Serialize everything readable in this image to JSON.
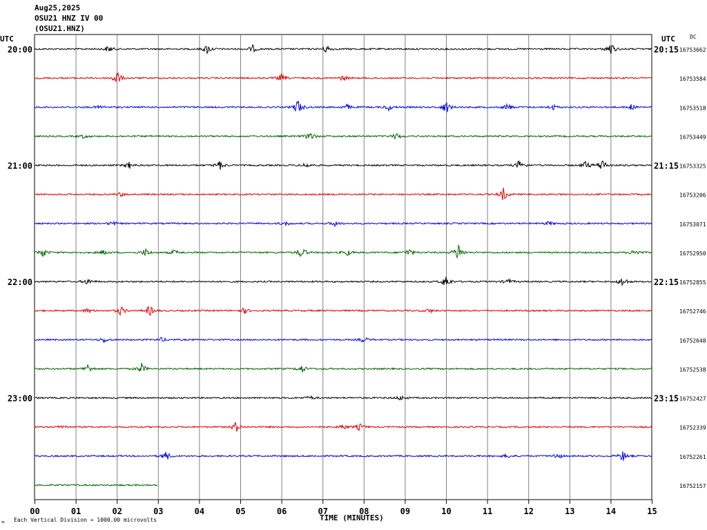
{
  "header": {
    "date": "Aug25,2025",
    "station": "OSU21 HNZ IV 00",
    "channel": "(OSU21.HNZ)"
  },
  "left_tz": "UTC",
  "right_tz": "UTC",
  "dc_label": "DC",
  "footer": {
    "corner_mark": "≈",
    "scale_note": "Each Vertical Division = 1000.00 microvolts"
  },
  "chart_data": {
    "type": "line",
    "xlabel": "TIME (MINUTES)",
    "ylabel": "",
    "title": "",
    "xlim": [
      0,
      15
    ],
    "x_ticks": [
      "00",
      "01",
      "02",
      "03",
      "04",
      "05",
      "06",
      "07",
      "08",
      "09",
      "10",
      "11",
      "12",
      "13",
      "14",
      "15"
    ],
    "grid": true,
    "row_minutes": 15,
    "left_time_labels": [
      "20:00",
      "21:00",
      "22:00",
      "23:00"
    ],
    "right_time_labels": [
      "20:15",
      "21:15",
      "22:15",
      "23:15"
    ],
    "trace_colors": [
      "#000000",
      "#e00000",
      "#0000e0",
      "#006400"
    ],
    "rows": [
      {
        "dc": "16753662",
        "end": 15,
        "events": [
          [
            1.8,
            5
          ],
          [
            4.2,
            7
          ],
          [
            5.3,
            5
          ],
          [
            7.1,
            6
          ],
          [
            14,
            10
          ]
        ]
      },
      {
        "dc": "16753584",
        "end": 15,
        "events": [
          [
            2.0,
            12
          ],
          [
            6.0,
            6
          ],
          [
            7.5,
            4
          ]
        ]
      },
      {
        "dc": "16753518",
        "end": 15,
        "events": [
          [
            1.6,
            3
          ],
          [
            6.4,
            12
          ],
          [
            7.6,
            4
          ],
          [
            8.6,
            5
          ],
          [
            10.0,
            10
          ],
          [
            11.5,
            6
          ],
          [
            12.6,
            4
          ],
          [
            14.5,
            4
          ]
        ]
      },
      {
        "dc": "16753449",
        "end": 15,
        "events": [
          [
            1.2,
            3
          ],
          [
            6.7,
            7
          ],
          [
            8.8,
            5
          ]
        ]
      },
      {
        "dc": "16753325",
        "end": 15,
        "events": [
          [
            2.3,
            5
          ],
          [
            4.5,
            7
          ],
          [
            6.6,
            4
          ],
          [
            11.8,
            9
          ],
          [
            13.4,
            6
          ],
          [
            13.8,
            10
          ]
        ]
      },
      {
        "dc": "16753206",
        "end": 15,
        "events": [
          [
            11.4,
            10
          ],
          [
            2.1,
            3
          ]
        ]
      },
      {
        "dc": "16753071",
        "end": 15,
        "events": [
          [
            1.9,
            3
          ],
          [
            6.1,
            3
          ],
          [
            7.3,
            4
          ],
          [
            12.5,
            3
          ]
        ]
      },
      {
        "dc": "16752950",
        "end": 15,
        "events": [
          [
            0.2,
            7
          ],
          [
            1.7,
            4
          ],
          [
            2.7,
            6
          ],
          [
            3.4,
            4
          ],
          [
            6.5,
            9
          ],
          [
            7.6,
            5
          ],
          [
            9.1,
            6
          ],
          [
            10.3,
            14
          ],
          [
            14.6,
            6
          ]
        ]
      },
      {
        "dc": "16752855",
        "end": 15,
        "events": [
          [
            1.3,
            5
          ],
          [
            10.0,
            10
          ],
          [
            11.5,
            4
          ],
          [
            14.3,
            8
          ]
        ]
      },
      {
        "dc": "16752746",
        "end": 15,
        "events": [
          [
            1.3,
            4
          ],
          [
            2.1,
            7
          ],
          [
            2.8,
            8
          ],
          [
            5.1,
            4
          ],
          [
            9.6,
            3
          ]
        ]
      },
      {
        "dc": "16752648",
        "end": 15,
        "events": [
          [
            1.7,
            4
          ],
          [
            3.1,
            3
          ],
          [
            8.0,
            4
          ]
        ]
      },
      {
        "dc": "16752538",
        "end": 15,
        "events": [
          [
            1.3,
            7
          ],
          [
            2.6,
            8
          ],
          [
            6.5,
            6
          ]
        ]
      },
      {
        "dc": "16752427",
        "end": 15,
        "events": [
          [
            6.7,
            3
          ],
          [
            8.9,
            4
          ]
        ]
      },
      {
        "dc": "16752339",
        "end": 15,
        "events": [
          [
            0.7,
            3
          ],
          [
            4.9,
            8
          ],
          [
            7.5,
            4
          ],
          [
            7.9,
            5
          ]
        ]
      },
      {
        "dc": "16752261",
        "end": 15,
        "events": [
          [
            3.2,
            7
          ],
          [
            11.5,
            3
          ],
          [
            12.7,
            5
          ],
          [
            14.3,
            8
          ]
        ]
      },
      {
        "dc": "16752157",
        "end": 3,
        "events": []
      }
    ]
  }
}
